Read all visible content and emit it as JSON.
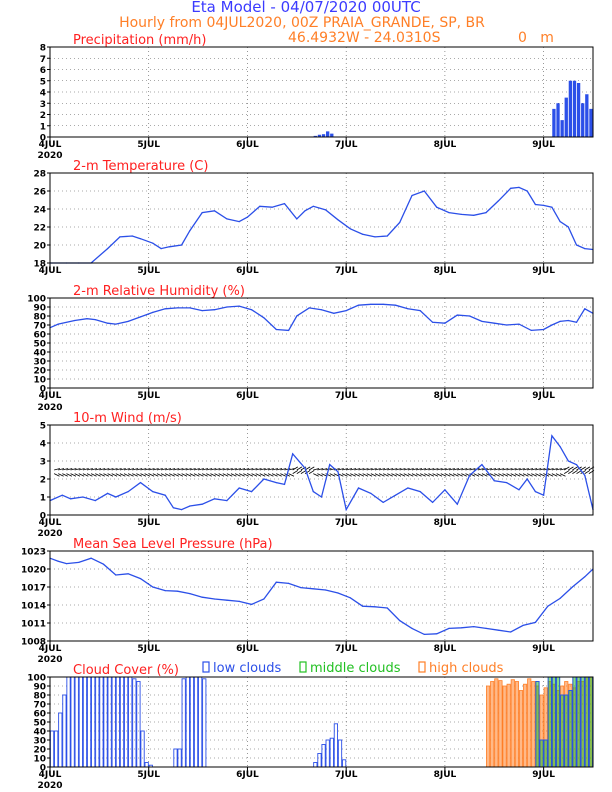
{
  "header": {
    "title": "Eta Model - 04/07/2020 00UTC",
    "subtitle": "Hourly from 04JUL2020, 00Z  PRAIA_GRANDE, SP, BR",
    "coords": "46.4932W - 24.0310S",
    "elevation": "0   m"
  },
  "colors": {
    "title": "#3b3bff",
    "orange": "#ff7f27",
    "red": "#ff2020",
    "series": "#2b4fe8",
    "green": "#22c022",
    "arrow": "#000000"
  },
  "x_axis": {
    "ticks": [
      "4JUL",
      "5JUL",
      "6JUL",
      "7JUL",
      "8JUL",
      "9JUL"
    ],
    "year": "2020",
    "range_hours": [
      0,
      132
    ],
    "step_hours": 24
  },
  "chart_data": [
    {
      "id": "precip",
      "type": "bar",
      "title": "Precipitation (mm/h)",
      "ylim": [
        0,
        8
      ],
      "yticks": [
        "0",
        "1",
        "2",
        "3",
        "4",
        "5",
        "6",
        "7",
        "8"
      ],
      "hours": [
        64,
        65,
        66,
        67,
        68,
        122,
        123,
        124,
        125,
        126,
        127,
        128,
        129,
        130,
        131
      ],
      "values": [
        0.1,
        0.2,
        0.25,
        0.5,
        0.3,
        2.5,
        3.0,
        1.5,
        3.5,
        5.0,
        5.0,
        4.8,
        3.0,
        3.8,
        2.5
      ]
    },
    {
      "id": "temp",
      "type": "line",
      "title": "2-m Temperature (C)",
      "ylim": [
        18,
        28
      ],
      "yticks": [
        "18",
        "20",
        "22",
        "24",
        "26",
        "28"
      ],
      "hours": [
        0,
        4,
        7,
        10,
        14,
        17,
        20,
        22,
        25,
        27,
        29,
        32,
        34,
        37,
        40,
        43,
        46,
        48,
        51,
        54,
        57,
        60,
        62,
        64,
        67,
        70,
        73,
        76,
        79,
        82,
        85,
        88,
        91,
        94,
        97,
        100,
        103,
        106,
        109,
        112,
        114,
        116,
        118,
        120,
        122,
        124,
        126,
        128,
        130,
        132
      ],
      "values": [
        17.8,
        17.8,
        17.9,
        18.0,
        19.6,
        20.9,
        21.0,
        20.7,
        20.2,
        19.6,
        19.8,
        20.0,
        21.6,
        23.6,
        23.8,
        22.9,
        22.6,
        23.1,
        24.3,
        24.2,
        24.6,
        22.9,
        23.8,
        24.3,
        23.9,
        22.8,
        21.8,
        21.2,
        20.9,
        21.0,
        22.5,
        25.5,
        26.0,
        24.2,
        23.6,
        23.4,
        23.3,
        23.6,
        24.9,
        26.3,
        26.4,
        26.0,
        24.5,
        24.4,
        24.2,
        22.6,
        22.0,
        20.0,
        19.6,
        19.5
      ]
    },
    {
      "id": "rh",
      "type": "line",
      "title": "2-m Relative Humidity (%)",
      "ylim": [
        0,
        100
      ],
      "yticks": [
        "0",
        "10",
        "20",
        "30",
        "40",
        "50",
        "60",
        "70",
        "80",
        "90",
        "100"
      ],
      "hours": [
        0,
        2,
        6,
        9,
        11,
        14,
        16,
        19,
        22,
        25,
        28,
        31,
        34,
        37,
        40,
        43,
        46,
        49,
        52,
        55,
        58,
        60,
        63,
        66,
        69,
        72,
        75,
        78,
        81,
        84,
        87,
        90,
        93,
        96,
        99,
        102,
        105,
        108,
        111,
        114,
        117,
        120,
        122,
        124,
        126,
        128,
        130,
        132
      ],
      "values": [
        67,
        71,
        75,
        77,
        76,
        72,
        71,
        74,
        79,
        84,
        88,
        89,
        89,
        86,
        87,
        90,
        91,
        87,
        78,
        65,
        64,
        80,
        89,
        87,
        83,
        86,
        92,
        93,
        93,
        92,
        88,
        86,
        73,
        72,
        81,
        80,
        74,
        72,
        70,
        71,
        64,
        65,
        70,
        74,
        75,
        73,
        88,
        83
      ]
    },
    {
      "id": "wind",
      "type": "line",
      "title": "10-m Wind (m/s)",
      "ylim": [
        0,
        5
      ],
      "yticks": [
        "0",
        "1",
        "2",
        "3",
        "4",
        "5"
      ],
      "hours": [
        0,
        3,
        5,
        8,
        11,
        14,
        16,
        19,
        22,
        25,
        28,
        30,
        32,
        34,
        37,
        40,
        43,
        46,
        49,
        52,
        55,
        57,
        59,
        62,
        64,
        66,
        68,
        70,
        72,
        75,
        78,
        81,
        84,
        87,
        90,
        93,
        96,
        99,
        102,
        105,
        108,
        111,
        114,
        116,
        118,
        120,
        122,
        124,
        126,
        128,
        130,
        132
      ],
      "values": [
        0.8,
        1.1,
        0.9,
        1.0,
        0.8,
        1.2,
        1.0,
        1.3,
        1.8,
        1.3,
        1.1,
        0.4,
        0.3,
        0.5,
        0.6,
        0.9,
        0.8,
        1.5,
        1.3,
        2.0,
        1.8,
        1.7,
        3.4,
        2.6,
        1.3,
        1.0,
        2.8,
        2.4,
        0.3,
        1.5,
        1.2,
        0.7,
        1.1,
        1.5,
        1.3,
        0.7,
        1.4,
        0.6,
        2.2,
        2.8,
        1.9,
        1.8,
        1.4,
        2.0,
        1.3,
        1.1,
        4.4,
        3.8,
        3.0,
        2.8,
        2.2,
        0.3
      ],
      "arrow_rows_ms": [
        2.3,
        2.5
      ]
    },
    {
      "id": "slp",
      "type": "line",
      "title": "Mean Sea Level Pressure (hPa)",
      "ylim": [
        1008,
        1023
      ],
      "yticks": [
        "1008",
        "1011",
        "1014",
        "1017",
        "1020",
        "1023"
      ],
      "hours": [
        0,
        2,
        4,
        7,
        10,
        13,
        16,
        19,
        22,
        25,
        28,
        31,
        34,
        37,
        40,
        43,
        46,
        49,
        52,
        55,
        58,
        61,
        64,
        67,
        70,
        73,
        76,
        79,
        82,
        85,
        88,
        91,
        94,
        97,
        100,
        103,
        106,
        109,
        112,
        115,
        118,
        121,
        124,
        127,
        130,
        132
      ],
      "values": [
        1021.8,
        1021.3,
        1020.9,
        1021.1,
        1021.8,
        1020.8,
        1019.0,
        1019.2,
        1018.4,
        1017.0,
        1016.4,
        1016.3,
        1015.9,
        1015.3,
        1015.0,
        1014.8,
        1014.6,
        1014.1,
        1015.0,
        1017.8,
        1017.6,
        1016.9,
        1016.7,
        1016.5,
        1016.0,
        1015.2,
        1013.8,
        1013.7,
        1013.5,
        1011.4,
        1010.1,
        1009.1,
        1009.2,
        1010.1,
        1010.2,
        1010.4,
        1010.1,
        1009.8,
        1009.5,
        1010.6,
        1011.1,
        1013.8,
        1015.1,
        1017.0,
        1018.7,
        1020.0
      ]
    },
    {
      "id": "cloud",
      "type": "bar",
      "title": "Cloud Cover (%)",
      "legend": [
        "low clouds",
        "middle clouds",
        "high clouds"
      ],
      "ylim": [
        0,
        100
      ],
      "yticks": [
        "0",
        "10",
        "20",
        "30",
        "40",
        "50",
        "60",
        "70",
        "80",
        "90",
        "100"
      ],
      "low": {
        "hours": [
          0,
          1,
          2,
          3,
          4,
          5,
          6,
          7,
          8,
          9,
          10,
          11,
          12,
          13,
          14,
          15,
          16,
          17,
          18,
          19,
          20,
          21,
          22,
          23,
          24,
          25,
          26,
          27,
          28,
          29,
          30,
          31,
          32,
          33,
          34,
          35,
          36,
          37,
          64,
          65,
          66,
          67,
          68,
          69,
          70,
          71,
          118,
          119,
          120,
          121,
          122,
          123,
          124,
          125,
          126,
          127,
          128,
          129,
          130,
          131
        ],
        "values": [
          40,
          40,
          60,
          80,
          100,
          100,
          100,
          100,
          100,
          100,
          100,
          100,
          100,
          100,
          100,
          100,
          100,
          100,
          100,
          100,
          98,
          95,
          40,
          5,
          2,
          0,
          0,
          0,
          0,
          0,
          20,
          20,
          98,
          100,
          100,
          100,
          100,
          98,
          5,
          15,
          25,
          30,
          32,
          48,
          30,
          8,
          95,
          30,
          30,
          100,
          100,
          100,
          80,
          80,
          85,
          100,
          100,
          100,
          100,
          100
        ]
      },
      "middle": {
        "hours": [
          118,
          119,
          120,
          121,
          122,
          123,
          124,
          125,
          126,
          127,
          128,
          129,
          130,
          131
        ],
        "values": [
          95,
          30,
          30,
          100,
          100,
          100,
          80,
          80,
          85,
          100,
          100,
          100,
          100,
          100
        ]
      },
      "high": {
        "hours": [
          106,
          107,
          108,
          109,
          110,
          111,
          112,
          113,
          114,
          115,
          116,
          117,
          118,
          119,
          120,
          121,
          122,
          123,
          124,
          125,
          126,
          127,
          128,
          129,
          130,
          131
        ],
        "values": [
          90,
          95,
          98,
          96,
          90,
          92,
          97,
          95,
          85,
          92,
          98,
          95,
          90,
          80,
          88,
          95,
          92,
          85,
          90,
          95,
          92,
          88,
          95,
          95,
          100,
          100
        ]
      }
    }
  ]
}
